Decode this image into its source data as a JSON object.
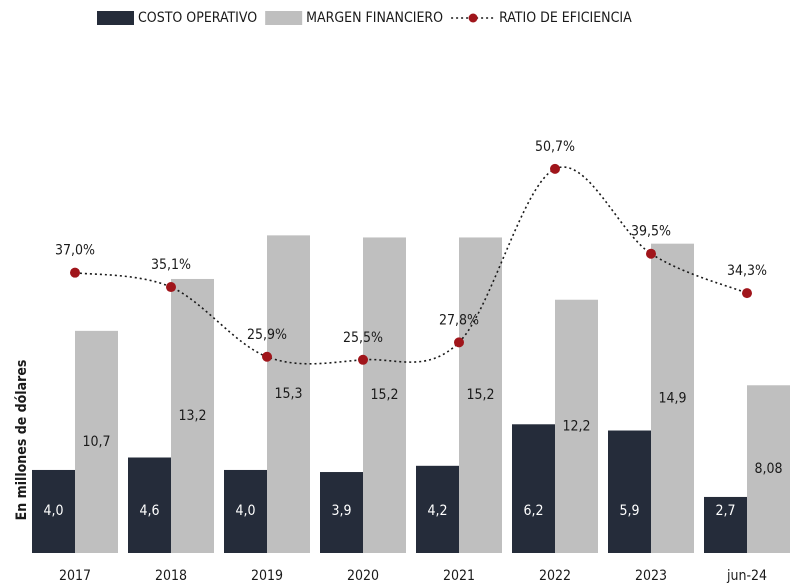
{
  "chart_data": {
    "type": "bar",
    "y_label": "En millones de dólares",
    "categories": [
      "2017",
      "2018",
      "2019",
      "2020",
      "2021",
      "2022",
      "2023",
      "jun-24"
    ],
    "ylim": [
      0,
      25
    ],
    "y2lim": [
      0,
      68.5
    ],
    "series": [
      {
        "name": "COSTO OPERATIVO",
        "color": "#252c3a",
        "values": [
          4.0,
          4.6,
          4.0,
          3.9,
          4.2,
          6.2,
          5.9,
          2.7
        ],
        "value_labels": [
          "4,0",
          "4,6",
          "4,0",
          "3,9",
          "4,2",
          "6,2",
          "5,9",
          "2,7"
        ]
      },
      {
        "name": "MARGEN FINANCIERO",
        "color": "#bfbfbf",
        "values": [
          10.7,
          13.2,
          15.3,
          15.2,
          15.2,
          12.2,
          14.9,
          8.08
        ],
        "value_labels": [
          "10,7",
          "13,2",
          "15,3",
          "15,2",
          "15,2",
          "12,2",
          "14,9",
          "8,08"
        ]
      },
      {
        "name": "RATIO DE EFICIENCIA",
        "color": "#a0151b",
        "type": "line",
        "axis": "y2",
        "values": [
          37.0,
          35.1,
          25.9,
          25.5,
          27.8,
          50.7,
          39.5,
          34.3
        ],
        "value_labels": [
          "37,0%",
          "35,1%",
          "25,9%",
          "25,5%",
          "27,8%",
          "50,7%",
          "39,5%",
          "34,3%"
        ]
      }
    ]
  }
}
